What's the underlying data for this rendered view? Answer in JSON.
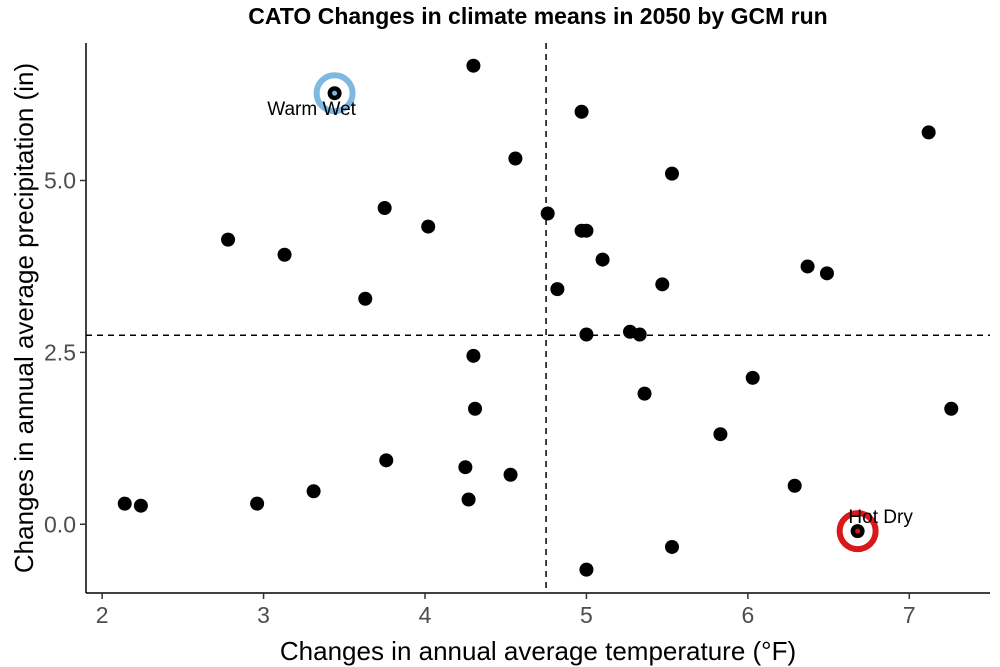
{
  "chart_data": {
    "type": "scatter",
    "title": "CATO Changes in climate means in 2050 by GCM run",
    "xlabel": "Changes in annual average temperature (°F)",
    "ylabel": "Changes in annual average precipitation (in)",
    "xlim": [
      1.9,
      7.5
    ],
    "ylim": [
      -1.0,
      7.0
    ],
    "x_ticks": [
      2,
      3,
      4,
      5,
      6,
      7
    ],
    "x_tick_labels": [
      "2",
      "3",
      "4",
      "5",
      "6",
      "7"
    ],
    "y_ticks": [
      0.0,
      2.5,
      5.0
    ],
    "y_tick_labels": [
      "0.0",
      "2.5",
      "5.0"
    ],
    "grid": false,
    "reference_lines": {
      "x": 4.75,
      "y": 2.75,
      "style": "dashed"
    },
    "points": [
      {
        "x": 2.14,
        "y": 0.3
      },
      {
        "x": 2.24,
        "y": 0.27
      },
      {
        "x": 2.78,
        "y": 4.14
      },
      {
        "x": 2.96,
        "y": 0.3
      },
      {
        "x": 3.13,
        "y": 3.92
      },
      {
        "x": 3.31,
        "y": 0.48
      },
      {
        "x": 3.44,
        "y": 6.27
      },
      {
        "x": 3.63,
        "y": 3.28
      },
      {
        "x": 3.75,
        "y": 4.6
      },
      {
        "x": 3.76,
        "y": 0.93
      },
      {
        "x": 4.02,
        "y": 4.33
      },
      {
        "x": 4.25,
        "y": 0.83
      },
      {
        "x": 4.27,
        "y": 0.36
      },
      {
        "x": 4.3,
        "y": 6.67
      },
      {
        "x": 4.3,
        "y": 2.45
      },
      {
        "x": 4.31,
        "y": 1.68
      },
      {
        "x": 4.53,
        "y": 0.72
      },
      {
        "x": 4.56,
        "y": 5.32
      },
      {
        "x": 4.76,
        "y": 4.52
      },
      {
        "x": 4.82,
        "y": 3.42
      },
      {
        "x": 4.97,
        "y": 6.0
      },
      {
        "x": 4.97,
        "y": 4.27
      },
      {
        "x": 5.0,
        "y": 4.27
      },
      {
        "x": 5.0,
        "y": 2.76
      },
      {
        "x": 5.0,
        "y": -0.66
      },
      {
        "x": 5.1,
        "y": 3.85
      },
      {
        "x": 5.27,
        "y": 2.8
      },
      {
        "x": 5.33,
        "y": 2.76
      },
      {
        "x": 5.36,
        "y": 1.9
      },
      {
        "x": 5.47,
        "y": 3.49
      },
      {
        "x": 5.53,
        "y": 5.1
      },
      {
        "x": 5.53,
        "y": -0.33
      },
      {
        "x": 5.83,
        "y": 1.31
      },
      {
        "x": 6.03,
        "y": 2.13
      },
      {
        "x": 6.29,
        "y": 0.56
      },
      {
        "x": 6.37,
        "y": 3.75
      },
      {
        "x": 6.49,
        "y": 3.65
      },
      {
        "x": 6.68,
        "y": -0.1
      },
      {
        "x": 7.12,
        "y": 5.7
      },
      {
        "x": 7.26,
        "y": 1.68
      }
    ],
    "highlights": [
      {
        "label": "Warm Wet",
        "x": 3.44,
        "y": 6.27,
        "color": "#7fb8e0"
      },
      {
        "label": "Hot Dry",
        "x": 6.68,
        "y": -0.1,
        "color": "#d7191c"
      }
    ]
  }
}
